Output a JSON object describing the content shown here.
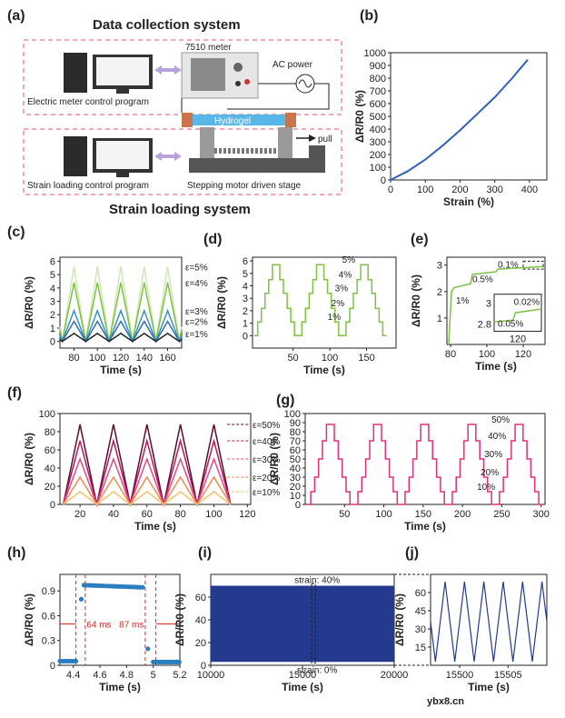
{
  "panel_labels": {
    "a": "(a)",
    "b": "(b)",
    "c": "(c)",
    "d": "(d)",
    "e": "(e)",
    "f": "(f)",
    "g": "(g)",
    "h": "(h)",
    "i": "(i)",
    "j": "(j)"
  },
  "colors": {
    "green": "#7dc242",
    "dkgreen": "#2e7d32",
    "blue": "#2f5fbf",
    "navy": "#233a8e",
    "magenta": "#e0307a",
    "dashed": "#e0507a",
    "purple": "#b8a2dc",
    "hydrogel": "#59b7e8",
    "electrode": "#c9744e",
    "red": "#d62828",
    "dot": "#2a7fc0"
  },
  "schematic": {
    "title_top": "Data collection system",
    "title_bottom": "Strain loading system",
    "meter": "7510 meter",
    "ac": "AC power",
    "left_top": "Electric meter control program",
    "left_bottom": "Strain loading control program",
    "hydrogel": "Hydrogel",
    "pull": "pull",
    "stage": "Stepping motor driven stage"
  },
  "chart_data": [
    {
      "panel": "b",
      "type": "line",
      "xlabel": "Strain (%)",
      "ylabel": "ΔR/R0 (%)",
      "xlim": [
        0,
        450
      ],
      "ylim": [
        0,
        1000
      ],
      "xticks": [
        0,
        100,
        200,
        300,
        400
      ],
      "yticks": [
        0,
        100,
        200,
        300,
        400,
        500,
        600,
        700,
        800,
        900,
        1000
      ],
      "x": [
        0,
        50,
        100,
        150,
        200,
        250,
        300,
        350,
        395
      ],
      "y": [
        0,
        70,
        160,
        270,
        390,
        520,
        650,
        800,
        945
      ]
    },
    {
      "panel": "c",
      "type": "line",
      "xlabel": "Time (s)",
      "ylabel": "ΔR/R0 (%)",
      "xlim": [
        68,
        172
      ],
      "ylim": [
        -0.5,
        6.3
      ],
      "xticks": [
        80,
        100,
        120,
        140,
        160
      ],
      "yticks": [
        0,
        1,
        2,
        3,
        4,
        5,
        6
      ],
      "series": [
        {
          "name": "ε=5%",
          "amp": 5.6
        },
        {
          "name": "ε=4%",
          "amp": 4.4
        },
        {
          "name": "ε=3%",
          "amp": 2.3
        },
        {
          "name": "ε=2%",
          "amp": 1.5
        },
        {
          "name": "ε=1%",
          "amp": 0.6
        }
      ],
      "period": 20,
      "first_peak": 80
    },
    {
      "panel": "d",
      "type": "line",
      "xlabel": "Time (s)",
      "ylabel": "ΔR/R0 (%)",
      "xlim": [
        -5,
        190
      ],
      "ylim": [
        -1,
        6.3
      ],
      "xticks": [
        50,
        100,
        150
      ],
      "yticks": [
        0,
        1,
        2,
        3,
        4,
        5,
        6
      ],
      "levels": [
        0,
        1.1,
        2.2,
        3.4,
        4.5,
        5.7
      ],
      "annotations": [
        "1%",
        "2%",
        "3%",
        "4%",
        "5%"
      ],
      "period": 60,
      "cycles": 3
    },
    {
      "panel": "e",
      "type": "line",
      "xlabel": "Time (s)",
      "ylabel": "ΔR/R0 (%)",
      "xlim": [
        78,
        132
      ],
      "ylim": [
        0,
        3.3
      ],
      "xticks": [
        80,
        100,
        120
      ],
      "yticks": [
        1,
        2,
        3
      ],
      "x": [
        79,
        80.5,
        82,
        91,
        92,
        105,
        106,
        132
      ],
      "y": [
        0,
        2.0,
        2.15,
        2.3,
        2.65,
        2.75,
        2.85,
        2.95
      ],
      "annotations": [
        "1%",
        "0.5%",
        "0.1%",
        "0.02%",
        "0.05%"
      ],
      "inset": {
        "xlabel": "120",
        "yticks": [
          2.8,
          3.0
        ]
      }
    },
    {
      "panel": "f",
      "type": "line",
      "xlabel": "Time (s)",
      "ylabel": "ΔR/R0 (%)",
      "xlim": [
        8,
        122
      ],
      "ylim": [
        0,
        100
      ],
      "xticks": [
        20,
        40,
        60,
        80,
        100,
        120
      ],
      "yticks": [
        0,
        20,
        40,
        60,
        80,
        100
      ],
      "series": [
        {
          "name": "ε=50%",
          "amp": 88
        },
        {
          "name": "ε=40%",
          "amp": 70
        },
        {
          "name": "ε=30%",
          "amp": 50
        },
        {
          "name": "ε=20%",
          "amp": 30
        },
        {
          "name": "ε=10%",
          "amp": 14
        }
      ],
      "period": 20,
      "first_peak": 20
    },
    {
      "panel": "g",
      "type": "line",
      "xlabel": "Time (s)",
      "ylabel": "ΔR/R0 (%)",
      "xlim": [
        0,
        305
      ],
      "ylim": [
        0,
        100
      ],
      "xticks": [
        50,
        100,
        150,
        200,
        250,
        300
      ],
      "yticks": [
        0,
        10,
        20,
        30,
        40,
        50,
        60,
        70,
        80,
        90,
        100
      ],
      "levels": [
        0,
        14,
        30,
        50,
        70,
        88
      ],
      "annotations": [
        "10%",
        "20%",
        "30%",
        "40%",
        "50%"
      ],
      "period": 60,
      "cycles": 5
    },
    {
      "panel": "h",
      "type": "scatter",
      "xlabel": "Time (s)",
      "ylabel": "ΔR/R0 (%)",
      "xlim": [
        4.3,
        5.2
      ],
      "ylim": [
        0,
        1.1
      ],
      "xticks": [
        4.4,
        4.6,
        4.8,
        5.0,
        5.2
      ],
      "yticks": [
        0.0,
        0.3,
        0.6,
        0.9
      ],
      "annotations": [
        "64 ms",
        "87 ms"
      ],
      "dashed_x": [
        4.42,
        4.49,
        4.94,
        5.02
      ]
    },
    {
      "panel": "i",
      "type": "area",
      "xlabel": "Time (s)",
      "ylabel": "ΔR/R0 (%)",
      "xlim": [
        10000,
        20000
      ],
      "ylim": [
        0,
        80
      ],
      "xticks": [
        10000,
        15000,
        20000
      ],
      "yticks": [
        0,
        20,
        40,
        60
      ],
      "min": 3,
      "max": 70,
      "annotations": [
        "strain: 40%",
        "strain: 0%"
      ]
    },
    {
      "panel": "j",
      "type": "line",
      "xlabel": "Time (s)",
      "ylabel": "ΔR/R0 (%)",
      "xlim": [
        15497,
        15509
      ],
      "ylim": [
        0,
        75
      ],
      "xticks": [
        15500,
        15505
      ],
      "yticks": [
        15,
        30,
        45,
        60
      ],
      "period": 2,
      "min": 3,
      "max": 69,
      "first_peak": 15499.5
    }
  ],
  "watermark": "ybx8.cn"
}
